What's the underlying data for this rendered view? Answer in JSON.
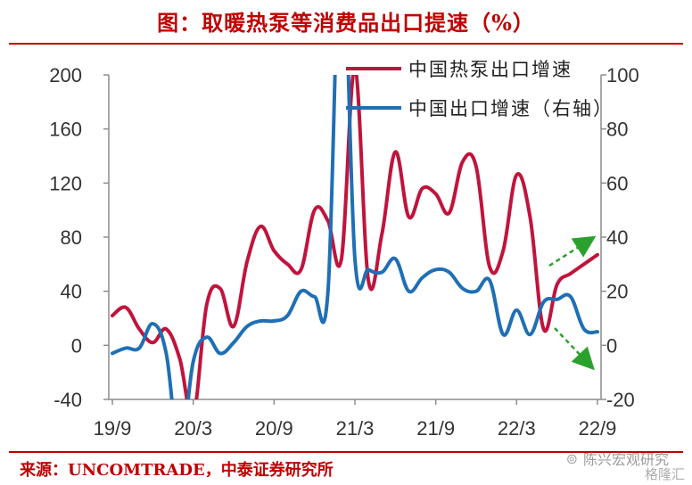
{
  "title": "图：取暖热泵等消费品出口提速（%）",
  "source": "来源：UNCOMTRADE，中泰证券研究所",
  "watermark": {
    "main": "陈兴宏观研究",
    "secondary": "格隆汇"
  },
  "colors": {
    "heat_pump": "#c0143c",
    "export": "#1f6fb5",
    "arrow": "#2ca02c",
    "title": "#c00000"
  },
  "icons": {
    "arrow_up": "dashed-green-arrow-up",
    "arrow_down": "dashed-green-arrow-down",
    "watermark": "wechat-icon"
  },
  "chart_data": {
    "type": "line",
    "title": "图：取暖热泵等消费品出口提速（%）",
    "xlabel": "",
    "ylabel": "",
    "x_ticks": [
      "19/9",
      "20/3",
      "20/9",
      "21/3",
      "21/9",
      "22/3",
      "22/9"
    ],
    "ylim_left": [
      -40,
      200
    ],
    "y_ticks_left": [
      -40,
      0,
      40,
      80,
      120,
      160,
      200
    ],
    "ylim_right": [
      -20,
      100
    ],
    "y_ticks_right": [
      -20,
      0,
      20,
      40,
      60,
      80,
      100
    ],
    "legend_position": "top-right",
    "grid": false,
    "series": [
      {
        "name": "中国热泵出口增速",
        "axis": "left",
        "x": [
          "19/9",
          "19/10",
          "19/11",
          "19/12",
          "20/1",
          "20/2",
          "20/3",
          "20/4",
          "20/5",
          "20/6",
          "20/7",
          "20/8",
          "20/9",
          "20/10",
          "20/11",
          "20/12",
          "21/1",
          "21/2",
          "21/3",
          "21/4",
          "21/5",
          "21/6",
          "21/7",
          "21/8",
          "21/9",
          "21/10",
          "21/11",
          "21/12",
          "22/1",
          "22/2",
          "22/3",
          "22/4",
          "22/5",
          "22/6",
          "22/7",
          "22/8",
          "22/9"
        ],
        "values": [
          22,
          28,
          12,
          2,
          12,
          -10,
          -52,
          30,
          42,
          14,
          62,
          88,
          70,
          60,
          56,
          100,
          92,
          64,
          205,
          48,
          82,
          143,
          95,
          116,
          112,
          98,
          136,
          132,
          58,
          70,
          126,
          95,
          12,
          45,
          53,
          60,
          67
        ]
      },
      {
        "name": "中国出口增速（右轴）",
        "axis": "right",
        "x": [
          "19/9",
          "19/10",
          "19/11",
          "19/12",
          "20/1",
          "20/2",
          "20/3",
          "20/4",
          "20/5",
          "20/6",
          "20/7",
          "20/8",
          "20/9",
          "20/10",
          "20/11",
          "20/12",
          "21/1",
          "21/2",
          "21/3",
          "21/4",
          "21/5",
          "21/6",
          "21/7",
          "21/8",
          "21/9",
          "21/10",
          "21/11",
          "21/12",
          "22/1",
          "22/2",
          "22/3",
          "22/4",
          "22/5",
          "22/6",
          "22/7",
          "22/8",
          "22/9"
        ],
        "values": [
          -3,
          -1,
          -1,
          8,
          -3,
          -40,
          -6,
          3,
          -3,
          1,
          7,
          9,
          9,
          11,
          20,
          18,
          20,
          155,
          32,
          28,
          27,
          32,
          20,
          25,
          28,
          27,
          21,
          20,
          24,
          4,
          13,
          4,
          16,
          17,
          18,
          6,
          5
        ]
      }
    ]
  }
}
